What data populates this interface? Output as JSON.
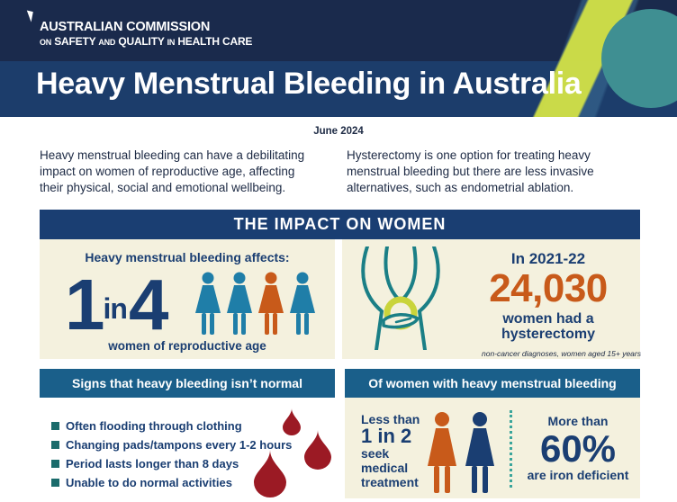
{
  "header": {
    "org_line1": "AUSTRALIAN COMMISSION",
    "org_line2_a": "ON",
    "org_line2_b": "SAFETY",
    "org_line2_c": "AND",
    "org_line2_d": "QUALITY",
    "org_line2_e": "IN",
    "org_line2_f": "HEALTH CARE",
    "title": "Heavy Menstrual Bleeding in Australia",
    "colors": {
      "navy": "#1a2a4c",
      "lime": "#d2e146",
      "teal": "#3f8f92"
    }
  },
  "intro": {
    "date": "June 2024",
    "left": "Heavy menstrual bleeding can have a debilitating impact on women of reproductive age, affecting their physical, social and emotional wellbeing.",
    "right": "Hysterectomy is one option for treating heavy menstrual bleeding but there are less invasive alternatives, such as endometrial ablation."
  },
  "impact": {
    "heading": "THE IMPACT ON WOMEN",
    "affects_label": "Heavy menstrual bleeding affects:",
    "ratio_num": "1",
    "ratio_in": "in",
    "ratio_den": "4",
    "repro_label": "women of reproductive age",
    "figure_colors": [
      "#1f7ea8",
      "#1f7ea8",
      "#c85a1a",
      "#1f7ea8"
    ],
    "year": "In 2021-22",
    "hysterectomies": "24,030",
    "hyst_label_1": "women had a",
    "hyst_label_2": "hysterectomy",
    "hyst_note": "non-cancer diagnoses, women aged 15+ years"
  },
  "signs": {
    "heading": "Signs that heavy bleeding isn’t normal",
    "items": [
      "Often flooding through clothing",
      "Changing pads/tampons every 1-2 hours",
      "Period lasts longer than 8 days",
      "Unable to do normal activities"
    ],
    "drop_color": "#9b1a24"
  },
  "women_hmb": {
    "heading": "Of women with heavy menstrual bleeding",
    "less_than": "Less than",
    "one_in_two": "1 in 2",
    "seek": "seek",
    "medical": "medical",
    "treatment": "treatment",
    "more_than": "More than",
    "percent": "60%",
    "iron": "are iron deficient"
  }
}
